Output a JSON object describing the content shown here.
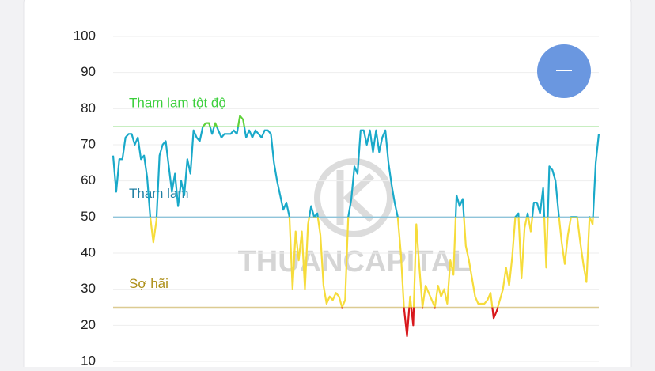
{
  "chart_data": {
    "type": "line",
    "ylim": [
      10,
      100
    ],
    "yticks": [
      10,
      20,
      30,
      40,
      50,
      60,
      70,
      80,
      90,
      100
    ],
    "grid": true,
    "watermark": "THUANCAPITAL",
    "reference_lines": [
      {
        "value": 75,
        "label": "Tham lam tột độ",
        "color": "#a8e49c",
        "label_color": "#3ccf3c",
        "above_color": "#5fd23a"
      },
      {
        "value": 50,
        "label": "Tham lam",
        "color": "#8fc4da",
        "label_color": "#1f7fa3",
        "above_color": "#19a9c9"
      },
      {
        "value": 25,
        "label": "Sợ hãi",
        "color": "#dccb92",
        "label_color": "#ad8f18",
        "above_color": "#f6dc3b"
      }
    ],
    "below_color": "#d8181c",
    "values": [
      67,
      57,
      66,
      66,
      72,
      73,
      73,
      70,
      72,
      66,
      67,
      61,
      50,
      43,
      49,
      67,
      70,
      71,
      64,
      57,
      62,
      53,
      60,
      56,
      66,
      62,
      74,
      72,
      71,
      75,
      76,
      76,
      73,
      76,
      74,
      72,
      73,
      73,
      73,
      74,
      73,
      78,
      77,
      72,
      74,
      72,
      74,
      73,
      72,
      74,
      74,
      73,
      65,
      60,
      56,
      52,
      54,
      50,
      30,
      46,
      38,
      46,
      30,
      48,
      53,
      50,
      51,
      45,
      31,
      26,
      28,
      27,
      29,
      28,
      25,
      27,
      50,
      55,
      64,
      62,
      74,
      74,
      70,
      74,
      68,
      74,
      68,
      72,
      74,
      65,
      59,
      54,
      50,
      40,
      25,
      17,
      28,
      20,
      48,
      36,
      25,
      31,
      29,
      27,
      25,
      31,
      28,
      30,
      26,
      38,
      34,
      56,
      53,
      55,
      42,
      38,
      33,
      28,
      26,
      26,
      26,
      27,
      29,
      22,
      24,
      27,
      30,
      36,
      31,
      39,
      50,
      51,
      33,
      47,
      51,
      46,
      54,
      54,
      51,
      58,
      36,
      64,
      63,
      60,
      51,
      43,
      37,
      45,
      50,
      50,
      50,
      43,
      37,
      32,
      50,
      48,
      65,
      73
    ]
  }
}
